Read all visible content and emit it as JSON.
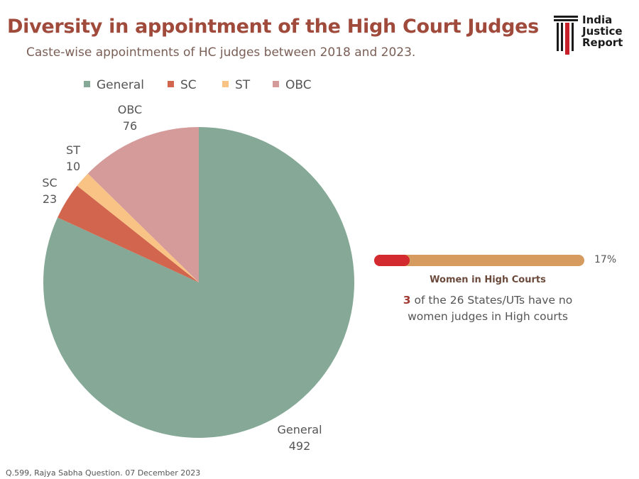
{
  "header": {
    "title": "Diversity in appointment of the High Court Judges",
    "subtitle": "Caste-wise appointments of HC judges between 2018 and 2023."
  },
  "logo": {
    "line1": "India",
    "line2": "Justice",
    "line3": "Report",
    "accent_color": "#c8202b"
  },
  "chart_data": {
    "type": "pie",
    "categories": [
      "General",
      "SC",
      "ST",
      "OBC"
    ],
    "values": [
      492,
      23,
      10,
      76
    ],
    "colors": [
      "#85a996",
      "#d2654e",
      "#f8c384",
      "#d59b9b"
    ],
    "legend_placement": "top"
  },
  "women_stat": {
    "value_percent": 17,
    "percent_label": "17%",
    "title": "Women in High Courts",
    "note_number": "3",
    "note_rest_line1": " of the 26 States/UTs have no",
    "note_line2": "women judges in High courts",
    "fill_color": "#d32a30",
    "track_color": "#d59b5f"
  },
  "source": "Q.599, Rajya Sabha Question. 07 December 2023"
}
